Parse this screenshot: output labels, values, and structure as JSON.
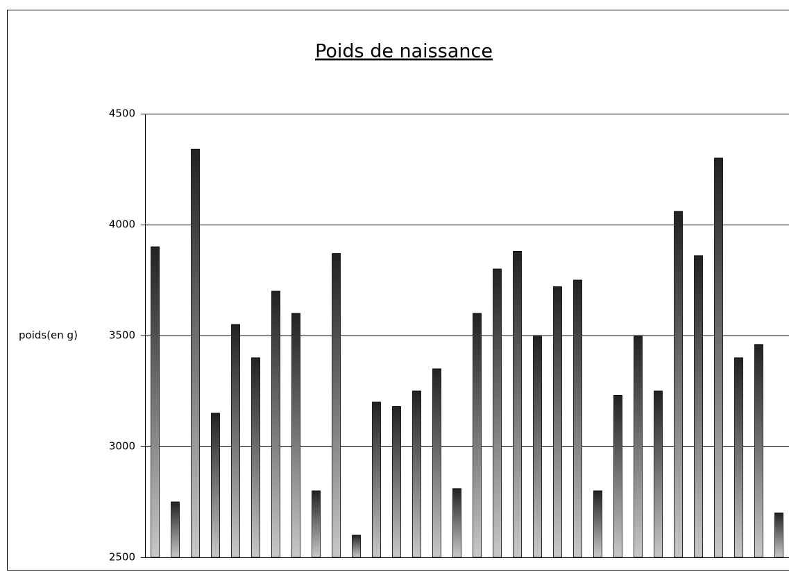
{
  "chart_data": {
    "type": "bar",
    "title": "Poids de naissance",
    "y_label": "poids(en g)",
    "categories": [
      null,
      null,
      null,
      null,
      null,
      null,
      null,
      null,
      null,
      null,
      null,
      null,
      null,
      null,
      null,
      null,
      null,
      null,
      null,
      null,
      null,
      null,
      null,
      null,
      null,
      null,
      null,
      null,
      null,
      null,
      null,
      null
    ],
    "values": [
      3900,
      2750,
      4340,
      3150,
      3550,
      3400,
      3700,
      3600,
      2800,
      3870,
      2600,
      3200,
      3180,
      3250,
      3350,
      2810,
      3600,
      3800,
      3880,
      3500,
      3720,
      3750,
      2800,
      3230,
      3500,
      3250,
      4060,
      3860,
      4300,
      3400,
      3460,
      2700
    ],
    "color": "#222222",
    "ylim": [
      2500,
      4500
    ],
    "yticks": [
      2500,
      3000,
      3500,
      4000,
      4500
    ],
    "grid": true
  }
}
